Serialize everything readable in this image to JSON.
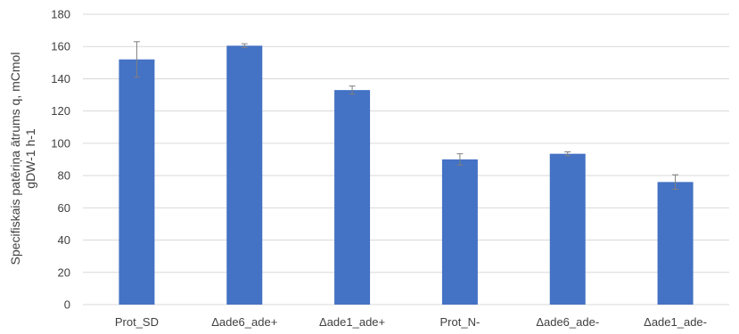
{
  "chart_data": {
    "type": "bar",
    "title": "",
    "xlabel": "",
    "ylabel_lines": [
      "Specifiskais patēriņa ātrums q, mCmol",
      "gDW-1 h-1"
    ],
    "categories": [
      "Prot_SD",
      "Δade6_ade+",
      "Δade1_ade+",
      "Prot_N-",
      "Δade6_ade-",
      "Δade1_ade-"
    ],
    "series": [
      {
        "values": [
          152,
          160.5,
          133,
          90,
          93.5,
          76
        ],
        "error": [
          11,
          1.2,
          2.5,
          3.5,
          1.2,
          4.5
        ]
      }
    ],
    "ylim": [
      0,
      180
    ],
    "yticks": [
      0,
      20,
      40,
      60,
      80,
      100,
      120,
      140,
      160,
      180
    ],
    "grid": true,
    "legend": "none",
    "colors": {
      "bar": "#4472c4",
      "grid": "#d9d9d9",
      "error_bar": "#7f7f7f",
      "text": "#404040"
    }
  }
}
